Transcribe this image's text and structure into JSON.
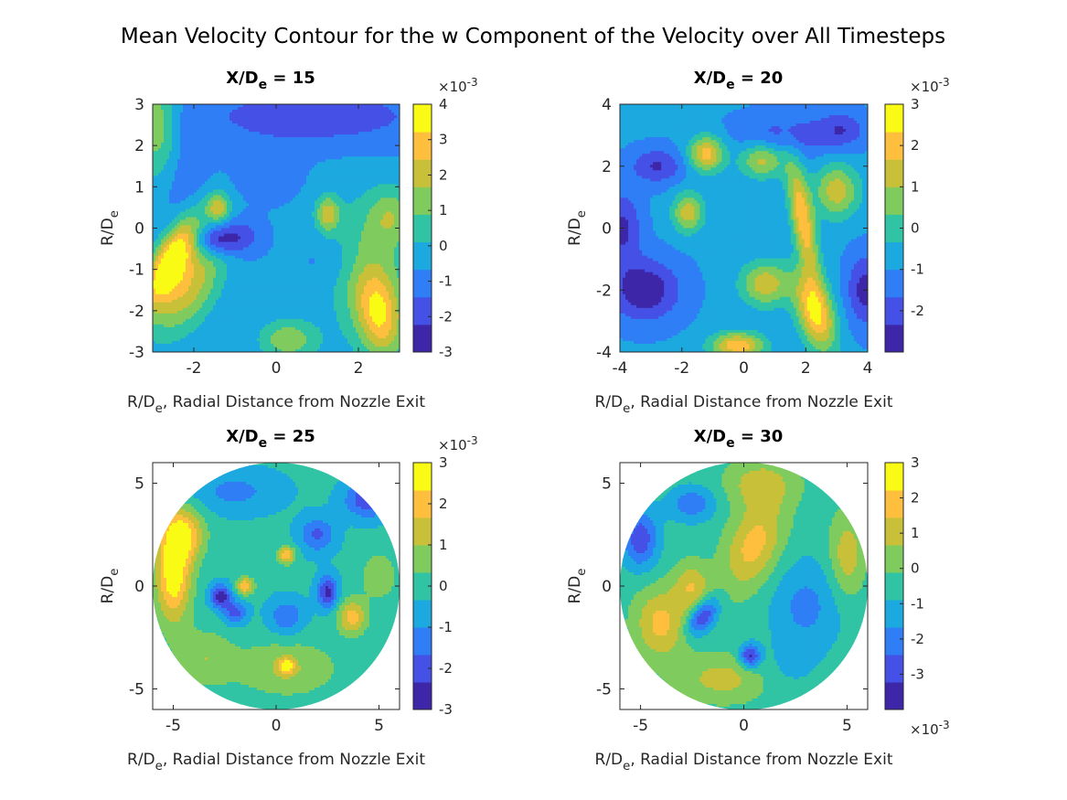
{
  "chart_data": {
    "type": "heatmap",
    "title": "Mean Velocity Contour for the w Component of the Velocity over All Timesteps",
    "colormap": [
      "#3e26a8",
      "#4550e6",
      "#2f7ef6",
      "#1ca9df",
      "#30c3a4",
      "#7fcb5e",
      "#c9c039",
      "#fdbf3d",
      "#f9fb15"
    ],
    "panels": [
      {
        "title_main": "X/D",
        "title_sub": "e",
        "title_rest": " = 15",
        "xlabel_main": "R/D",
        "xlabel_sub": "e",
        "xlabel_rest": ", Radial Distance from Nozzle Exit",
        "ylabel_main": "R/D",
        "ylabel_sub": "e",
        "xlim": [
          -3,
          3
        ],
        "ylim": [
          -3,
          3
        ],
        "xticks": [
          "-2",
          "0",
          "2"
        ],
        "xtick_values": [
          -2,
          0,
          2
        ],
        "yticks": [
          "-3",
          "-2",
          "-1",
          "0",
          "1",
          "2",
          "3"
        ],
        "ytick_values": [
          -3,
          -2,
          -1,
          0,
          1,
          2,
          3
        ],
        "domain": "square",
        "colorbar": {
          "multiplier": "×10",
          "exponent": "-3",
          "multiplier_position": "top",
          "clim": [
            -3,
            4
          ],
          "ticks": [
            "-3",
            "-2",
            "-1",
            "0",
            "1",
            "2",
            "3",
            "4"
          ],
          "tick_values": [
            -3,
            -2,
            -1,
            0,
            1,
            2,
            3,
            4
          ]
        }
      },
      {
        "title_main": "X/D",
        "title_sub": "e",
        "title_rest": " = 20",
        "xlabel_main": "R/D",
        "xlabel_sub": "e",
        "xlabel_rest": ", Radial Distance from Nozzle Exit",
        "ylabel_main": "R/D",
        "ylabel_sub": "e",
        "xlim": [
          -4,
          4
        ],
        "ylim": [
          -4,
          4
        ],
        "xticks": [
          "-4",
          "-2",
          "0",
          "2",
          "4"
        ],
        "xtick_values": [
          -4,
          -2,
          0,
          2,
          4
        ],
        "yticks": [
          "-4",
          "-2",
          "0",
          "2",
          "4"
        ],
        "ytick_values": [
          -4,
          -2,
          0,
          2,
          4
        ],
        "domain": "square",
        "colorbar": {
          "multiplier": "×10",
          "exponent": "-3",
          "multiplier_position": "top",
          "clim": [
            -3,
            3
          ],
          "ticks": [
            "-2",
            "-1",
            "0",
            "1",
            "2",
            "3"
          ],
          "tick_values": [
            -2,
            -1,
            0,
            1,
            2,
            3
          ]
        }
      },
      {
        "title_main": "X/D",
        "title_sub": "e",
        "title_rest": " = 25",
        "xlabel_main": "R/D",
        "xlabel_sub": "e",
        "xlabel_rest": ", Radial Distance from Nozzle Exit",
        "ylabel_main": "R/D",
        "ylabel_sub": "e",
        "xlim": [
          -6,
          6
        ],
        "ylim": [
          -6,
          6
        ],
        "xticks": [
          "-5",
          "0",
          "5"
        ],
        "xtick_values": [
          -5,
          0,
          5
        ],
        "yticks": [
          "-5",
          "0",
          "5"
        ],
        "ytick_values": [
          -5,
          0,
          5
        ],
        "domain": "circle",
        "colorbar": {
          "multiplier": "×10",
          "exponent": "-3",
          "multiplier_position": "top",
          "clim": [
            -3,
            3
          ],
          "ticks": [
            "-3",
            "-2",
            "-1",
            "0",
            "1",
            "2",
            "3"
          ],
          "tick_values": [
            -3,
            -2,
            -1,
            0,
            1,
            2,
            3
          ]
        }
      },
      {
        "title_main": "X/D",
        "title_sub": "e",
        "title_rest": " = 30",
        "xlabel_main": "R/D",
        "xlabel_sub": "e",
        "xlabel_rest": ", Radial Distance from Nozzle Exit",
        "ylabel_main": "R/D",
        "ylabel_sub": "e",
        "xlim": [
          -6,
          6
        ],
        "ylim": [
          -6,
          6
        ],
        "xticks": [
          "-5",
          "0",
          "5"
        ],
        "xtick_values": [
          -5,
          0,
          5
        ],
        "yticks": [
          "-5",
          "0",
          "5"
        ],
        "ytick_values": [
          -5,
          0,
          5
        ],
        "domain": "circle",
        "colorbar": {
          "multiplier": "×10",
          "exponent": "-3",
          "multiplier_position": "bottom",
          "clim": [
            -4,
            3
          ],
          "ticks": [
            "-3",
            "-2",
            "-1",
            "0",
            "1",
            "2",
            "3"
          ],
          "tick_values": [
            -3,
            -2,
            -1,
            0,
            1,
            2,
            3
          ]
        }
      }
    ],
    "features": [
      [
        {
          "x": -2.55,
          "y": -0.75,
          "sx": 0.28,
          "sy": 0.85,
          "rot": -28,
          "v": 3.6
        },
        {
          "x": -2.2,
          "y": -1.4,
          "sx": 0.5,
          "sy": 0.9,
          "rot": -30,
          "v": 2.4
        },
        {
          "x": -2.9,
          "y": 2.5,
          "sx": 0.45,
          "sy": 0.9,
          "rot": 0,
          "v": 1.6
        },
        {
          "x": -2.2,
          "y": 1.7,
          "sx": 0.4,
          "sy": 1.3,
          "rot": 0,
          "v": -1.4
        },
        {
          "x": -1.5,
          "y": -0.3,
          "sx": 0.35,
          "sy": 0.25,
          "rot": 0,
          "v": -2.7
        },
        {
          "x": -0.9,
          "y": -0.2,
          "sx": 0.35,
          "sy": 0.3,
          "rot": 0,
          "v": -2.1
        },
        {
          "x": -1.4,
          "y": 0.5,
          "sx": 0.2,
          "sy": 0.25,
          "rot": 0,
          "v": 2.0
        },
        {
          "x": 1.25,
          "y": 0.35,
          "sx": 0.2,
          "sy": 0.3,
          "rot": 0,
          "v": 1.9
        },
        {
          "x": 0.9,
          "y": 2.7,
          "sx": 2.0,
          "sy": 0.5,
          "rot": 0,
          "v": -2.0
        },
        {
          "x": 2.3,
          "y": -1.3,
          "sx": 0.7,
          "sy": 1.3,
          "rot": 10,
          "v": 1.3
        },
        {
          "x": 2.5,
          "y": -2.1,
          "sx": 0.35,
          "sy": 0.7,
          "rot": 10,
          "v": 2.1
        },
        {
          "x": 0.3,
          "y": -2.7,
          "sx": 0.5,
          "sy": 0.35,
          "rot": 0,
          "v": 1.5
        },
        {
          "x": 2.8,
          "y": 0.3,
          "sx": 0.4,
          "sy": 0.5,
          "rot": 0,
          "v": 1.2
        },
        {
          "x": 1.4,
          "y": -0.8,
          "sx": 0.5,
          "sy": 0.4,
          "rot": 0,
          "v": -1.2
        },
        {
          "x": -0.2,
          "y": 1.3,
          "sx": 0.5,
          "sy": 0.4,
          "rot": 0,
          "v": -1.3
        }
      ],
      [
        {
          "x": 2.3,
          "y": -2.7,
          "sx": 0.4,
          "sy": 0.9,
          "rot": 15,
          "v": 2.6
        },
        {
          "x": 1.9,
          "y": 0.3,
          "sx": 0.25,
          "sy": 1.3,
          "rot": 10,
          "v": 2.2
        },
        {
          "x": -1.8,
          "y": 0.5,
          "sx": 0.35,
          "sy": 0.45,
          "rot": 0,
          "v": 1.4
        },
        {
          "x": -1.2,
          "y": 2.4,
          "sx": 0.4,
          "sy": 0.4,
          "rot": 0,
          "v": 2.0
        },
        {
          "x": 0.7,
          "y": -1.8,
          "sx": 0.55,
          "sy": 0.5,
          "rot": 0,
          "v": 1.5
        },
        {
          "x": -0.2,
          "y": -3.8,
          "sx": 0.6,
          "sy": 0.3,
          "rot": 0,
          "v": 2.2
        },
        {
          "x": -3.2,
          "y": -2.0,
          "sx": 0.8,
          "sy": 0.7,
          "rot": 0,
          "v": -2.9
        },
        {
          "x": -3.9,
          "y": 0.0,
          "sx": 0.4,
          "sy": 0.8,
          "rot": 0,
          "v": -2.5
        },
        {
          "x": 3.9,
          "y": -2.0,
          "sx": 0.4,
          "sy": 0.8,
          "rot": 0,
          "v": -2.6
        },
        {
          "x": -2.8,
          "y": 2.0,
          "sx": 0.6,
          "sy": 0.4,
          "rot": 0,
          "v": -2.4
        },
        {
          "x": 1.5,
          "y": 3.0,
          "sx": 1.2,
          "sy": 0.5,
          "rot": 0,
          "v": -2.0
        },
        {
          "x": 3.0,
          "y": 1.2,
          "sx": 0.5,
          "sy": 0.6,
          "rot": 0,
          "v": 1.4
        },
        {
          "x": 0.6,
          "y": 2.2,
          "sx": 0.5,
          "sy": 0.4,
          "rot": 0,
          "v": 1.3
        },
        {
          "x": 3.2,
          "y": 3.2,
          "sx": 0.5,
          "sy": 0.4,
          "rot": 0,
          "v": -2.0
        }
      ],
      [
        {
          "x": -5.0,
          "y": 0.5,
          "sx": 0.6,
          "sy": 1.6,
          "rot": 0,
          "v": 2.9
        },
        {
          "x": -4.5,
          "y": 2.5,
          "sx": 0.7,
          "sy": 0.9,
          "rot": 0,
          "v": 2.3
        },
        {
          "x": -2.7,
          "y": -0.5,
          "sx": 0.35,
          "sy": 0.4,
          "rot": 0,
          "v": -2.8
        },
        {
          "x": -2.0,
          "y": -1.3,
          "sx": 0.4,
          "sy": 0.4,
          "rot": 0,
          "v": -2.0
        },
        {
          "x": 2.5,
          "y": -0.3,
          "sx": 0.35,
          "sy": 0.55,
          "rot": 0,
          "v": -2.6
        },
        {
          "x": 3.7,
          "y": -1.5,
          "sx": 0.5,
          "sy": 0.6,
          "rot": 0,
          "v": 2.0
        },
        {
          "x": -1.5,
          "y": 0.0,
          "sx": 0.3,
          "sy": 0.3,
          "rot": 0,
          "v": 2.2
        },
        {
          "x": 0.5,
          "y": 1.5,
          "sx": 0.3,
          "sy": 0.3,
          "rot": 0,
          "v": 2.2
        },
        {
          "x": -2.0,
          "y": 4.6,
          "sx": 1.5,
          "sy": 0.7,
          "rot": 0,
          "v": -1.2
        },
        {
          "x": 4.5,
          "y": 4.2,
          "sx": 0.8,
          "sy": 0.6,
          "rot": 0,
          "v": -2.3
        },
        {
          "x": 0.5,
          "y": -4.0,
          "sx": 1.8,
          "sy": 1.0,
          "rot": 0,
          "v": 1.0
        },
        {
          "x": -3.5,
          "y": -3.5,
          "sx": 1.0,
          "sy": 1.0,
          "rot": 0,
          "v": 0.9
        },
        {
          "x": 2.0,
          "y": 2.5,
          "sx": 0.6,
          "sy": 0.6,
          "rot": 0,
          "v": -1.8
        },
        {
          "x": 0.5,
          "y": -1.5,
          "sx": 0.6,
          "sy": 0.6,
          "rot": 0,
          "v": -1.6
        },
        {
          "x": 5.0,
          "y": 0.5,
          "sx": 0.6,
          "sy": 0.8,
          "rot": 0,
          "v": 1.0
        },
        {
          "x": 0.5,
          "y": -3.9,
          "sx": 0.25,
          "sy": 0.25,
          "rot": 0,
          "v": 2.3
        }
      ],
      [
        {
          "x": -2.0,
          "y": -1.5,
          "sx": 0.4,
          "sy": 0.7,
          "rot": -35,
          "v": -3.4
        },
        {
          "x": 0.3,
          "y": -3.4,
          "sx": 0.35,
          "sy": 0.4,
          "rot": 0,
          "v": -3.5
        },
        {
          "x": -5.0,
          "y": 2.3,
          "sx": 0.6,
          "sy": 1.0,
          "rot": 0,
          "v": -3.0
        },
        {
          "x": 0.5,
          "y": 2.0,
          "sx": 0.9,
          "sy": 1.6,
          "rot": -20,
          "v": 1.8
        },
        {
          "x": -4.0,
          "y": -1.8,
          "sx": 0.9,
          "sy": 1.2,
          "rot": 0,
          "v": 1.7
        },
        {
          "x": 5.0,
          "y": 1.5,
          "sx": 0.6,
          "sy": 1.4,
          "rot": 0,
          "v": 1.2
        },
        {
          "x": 3.0,
          "y": -1.0,
          "sx": 1.2,
          "sy": 1.6,
          "rot": 0,
          "v": -1.9
        },
        {
          "x": 0.8,
          "y": 5.0,
          "sx": 1.2,
          "sy": 0.8,
          "rot": 0,
          "v": 1.0
        },
        {
          "x": -2.5,
          "y": 4.0,
          "sx": 0.8,
          "sy": 0.6,
          "rot": 0,
          "v": -2.2
        },
        {
          "x": -1.0,
          "y": -4.5,
          "sx": 1.5,
          "sy": 0.8,
          "rot": 0,
          "v": 1.0
        },
        {
          "x": 2.0,
          "y": -4.0,
          "sx": 1.0,
          "sy": 0.8,
          "rot": 0,
          "v": -1.0
        },
        {
          "x": -2.5,
          "y": 0.0,
          "sx": 0.6,
          "sy": 0.8,
          "rot": 0,
          "v": 1.3
        }
      ]
    ],
    "base_values": [
      -0.6,
      -0.9,
      -0.2,
      -0.5
    ]
  }
}
